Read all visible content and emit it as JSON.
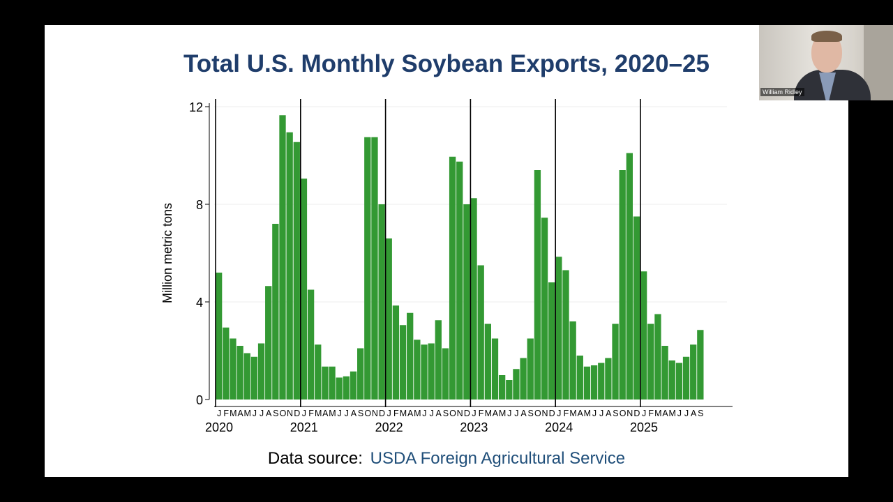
{
  "slide": {
    "title": "Total U.S. Monthly Soybean Exports, 2020–25",
    "source_label": "Data source:",
    "source_link": "USDA Foreign Agricultural Service"
  },
  "participant": {
    "name": "William Ridley"
  },
  "colors": {
    "bar": "#339933",
    "title": "#1f3d6b",
    "link": "#1f4e79"
  },
  "chart_data": {
    "type": "bar",
    "title": "Total U.S. Monthly Soybean Exports, 2020–25",
    "ylabel": "Million metric tons",
    "xlabel": "",
    "ylim": [
      0,
      12
    ],
    "yticks": [
      0,
      4,
      8,
      12
    ],
    "grid": true,
    "year_labels": [
      "2020",
      "2021",
      "2022",
      "2023",
      "2024",
      "2025"
    ],
    "month_labels": [
      "J",
      "F",
      "M",
      "A",
      "M",
      "J",
      "J",
      "A",
      "S",
      "O",
      "N",
      "D"
    ],
    "categories": [
      "2020-01",
      "2020-02",
      "2020-03",
      "2020-04",
      "2020-05",
      "2020-06",
      "2020-07",
      "2020-08",
      "2020-09",
      "2020-10",
      "2020-11",
      "2020-12",
      "2021-01",
      "2021-02",
      "2021-03",
      "2021-04",
      "2021-05",
      "2021-06",
      "2021-07",
      "2021-08",
      "2021-09",
      "2021-10",
      "2021-11",
      "2021-12",
      "2022-01",
      "2022-02",
      "2022-03",
      "2022-04",
      "2022-05",
      "2022-06",
      "2022-07",
      "2022-08",
      "2022-09",
      "2022-10",
      "2022-11",
      "2022-12",
      "2023-01",
      "2023-02",
      "2023-03",
      "2023-04",
      "2023-05",
      "2023-06",
      "2023-07",
      "2023-08",
      "2023-09",
      "2023-10",
      "2023-11",
      "2023-12",
      "2024-01",
      "2024-02",
      "2024-03",
      "2024-04",
      "2024-05",
      "2024-06",
      "2024-07",
      "2024-08",
      "2024-09",
      "2024-10",
      "2024-11",
      "2024-12",
      "2025-01",
      "2025-02",
      "2025-03",
      "2025-04",
      "2025-05",
      "2025-06",
      "2025-07",
      "2025-08",
      "2025-09"
    ],
    "values": [
      5.2,
      2.95,
      2.5,
      2.2,
      1.9,
      1.75,
      2.3,
      4.65,
      7.2,
      11.65,
      10.95,
      10.55,
      9.05,
      4.5,
      2.25,
      1.35,
      1.35,
      0.9,
      0.95,
      1.15,
      2.1,
      10.75,
      10.75,
      8.0,
      6.6,
      3.85,
      3.05,
      3.55,
      2.45,
      2.25,
      2.3,
      3.25,
      2.1,
      9.95,
      9.75,
      8.0,
      8.25,
      5.5,
      3.1,
      2.5,
      1.0,
      0.8,
      1.25,
      1.7,
      2.5,
      9.4,
      7.45,
      4.8,
      5.85,
      5.3,
      3.2,
      1.8,
      1.35,
      1.4,
      1.5,
      1.7,
      3.1,
      9.4,
      10.1,
      7.5,
      5.25,
      3.1,
      3.5,
      2.2,
      1.6,
      1.5,
      1.75,
      2.25,
      2.85
    ]
  }
}
